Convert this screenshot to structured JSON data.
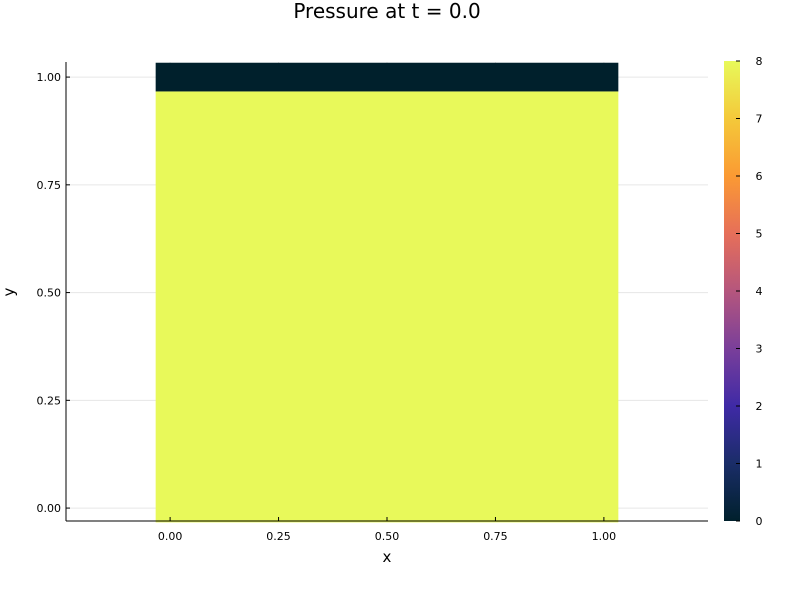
{
  "chart_data": {
    "type": "heatmap",
    "title": "Pressure at t = 0.0",
    "xlabel": "x",
    "ylabel": "y",
    "xlim": [
      -0.24,
      1.24
    ],
    "ylim": [
      -0.03,
      1.035
    ],
    "xticks": [
      0.0,
      0.25,
      0.5,
      0.75,
      1.0
    ],
    "xtick_labels": [
      "0.00",
      "0.25",
      "0.50",
      "0.75",
      "1.00"
    ],
    "yticks": [
      0.0,
      0.25,
      0.5,
      0.75,
      1.0
    ],
    "ytick_labels": [
      "0.00",
      "0.25",
      "0.50",
      "0.75",
      "1.00"
    ],
    "grid": true,
    "cells": [
      {
        "x0": -0.0333,
        "x1": 1.0333,
        "y0": -0.0333,
        "y1": 0.9667,
        "value": 8
      },
      {
        "x0": -0.0333,
        "x1": 1.0333,
        "y0": 0.9667,
        "y1": 1.0333,
        "value": 0
      }
    ],
    "colorbar": {
      "range": [
        0,
        8
      ],
      "ticks": [
        0,
        1,
        2,
        3,
        4,
        5,
        6,
        7,
        8
      ],
      "tick_labels": [
        "0",
        "1",
        "2",
        "3",
        "4",
        "5",
        "6",
        "7",
        "8"
      ],
      "colormap": [
        "#00202c",
        "#1a2d68",
        "#3f2aa6",
        "#7a3f9a",
        "#b5567d",
        "#e66f59",
        "#fb9a33",
        "#f4c93a",
        "#e8f95a"
      ]
    }
  }
}
